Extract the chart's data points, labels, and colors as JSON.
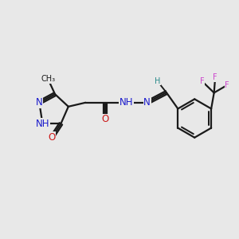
{
  "bg_color": "#e8e8e8",
  "bond_color": "#1a1a1a",
  "bond_width": 1.6,
  "atom_colors": {
    "C": "#1a1a1a",
    "N": "#1a1acc",
    "O": "#cc1a1a",
    "F": "#cc44cc",
    "H": "#2a8a8a"
  },
  "font_size_atom": 8.5,
  "font_size_small": 7.0,
  "figsize": [
    3.0,
    3.0
  ],
  "dpi": 100,
  "xlim": [
    0,
    10
  ],
  "ylim": [
    0,
    10
  ]
}
